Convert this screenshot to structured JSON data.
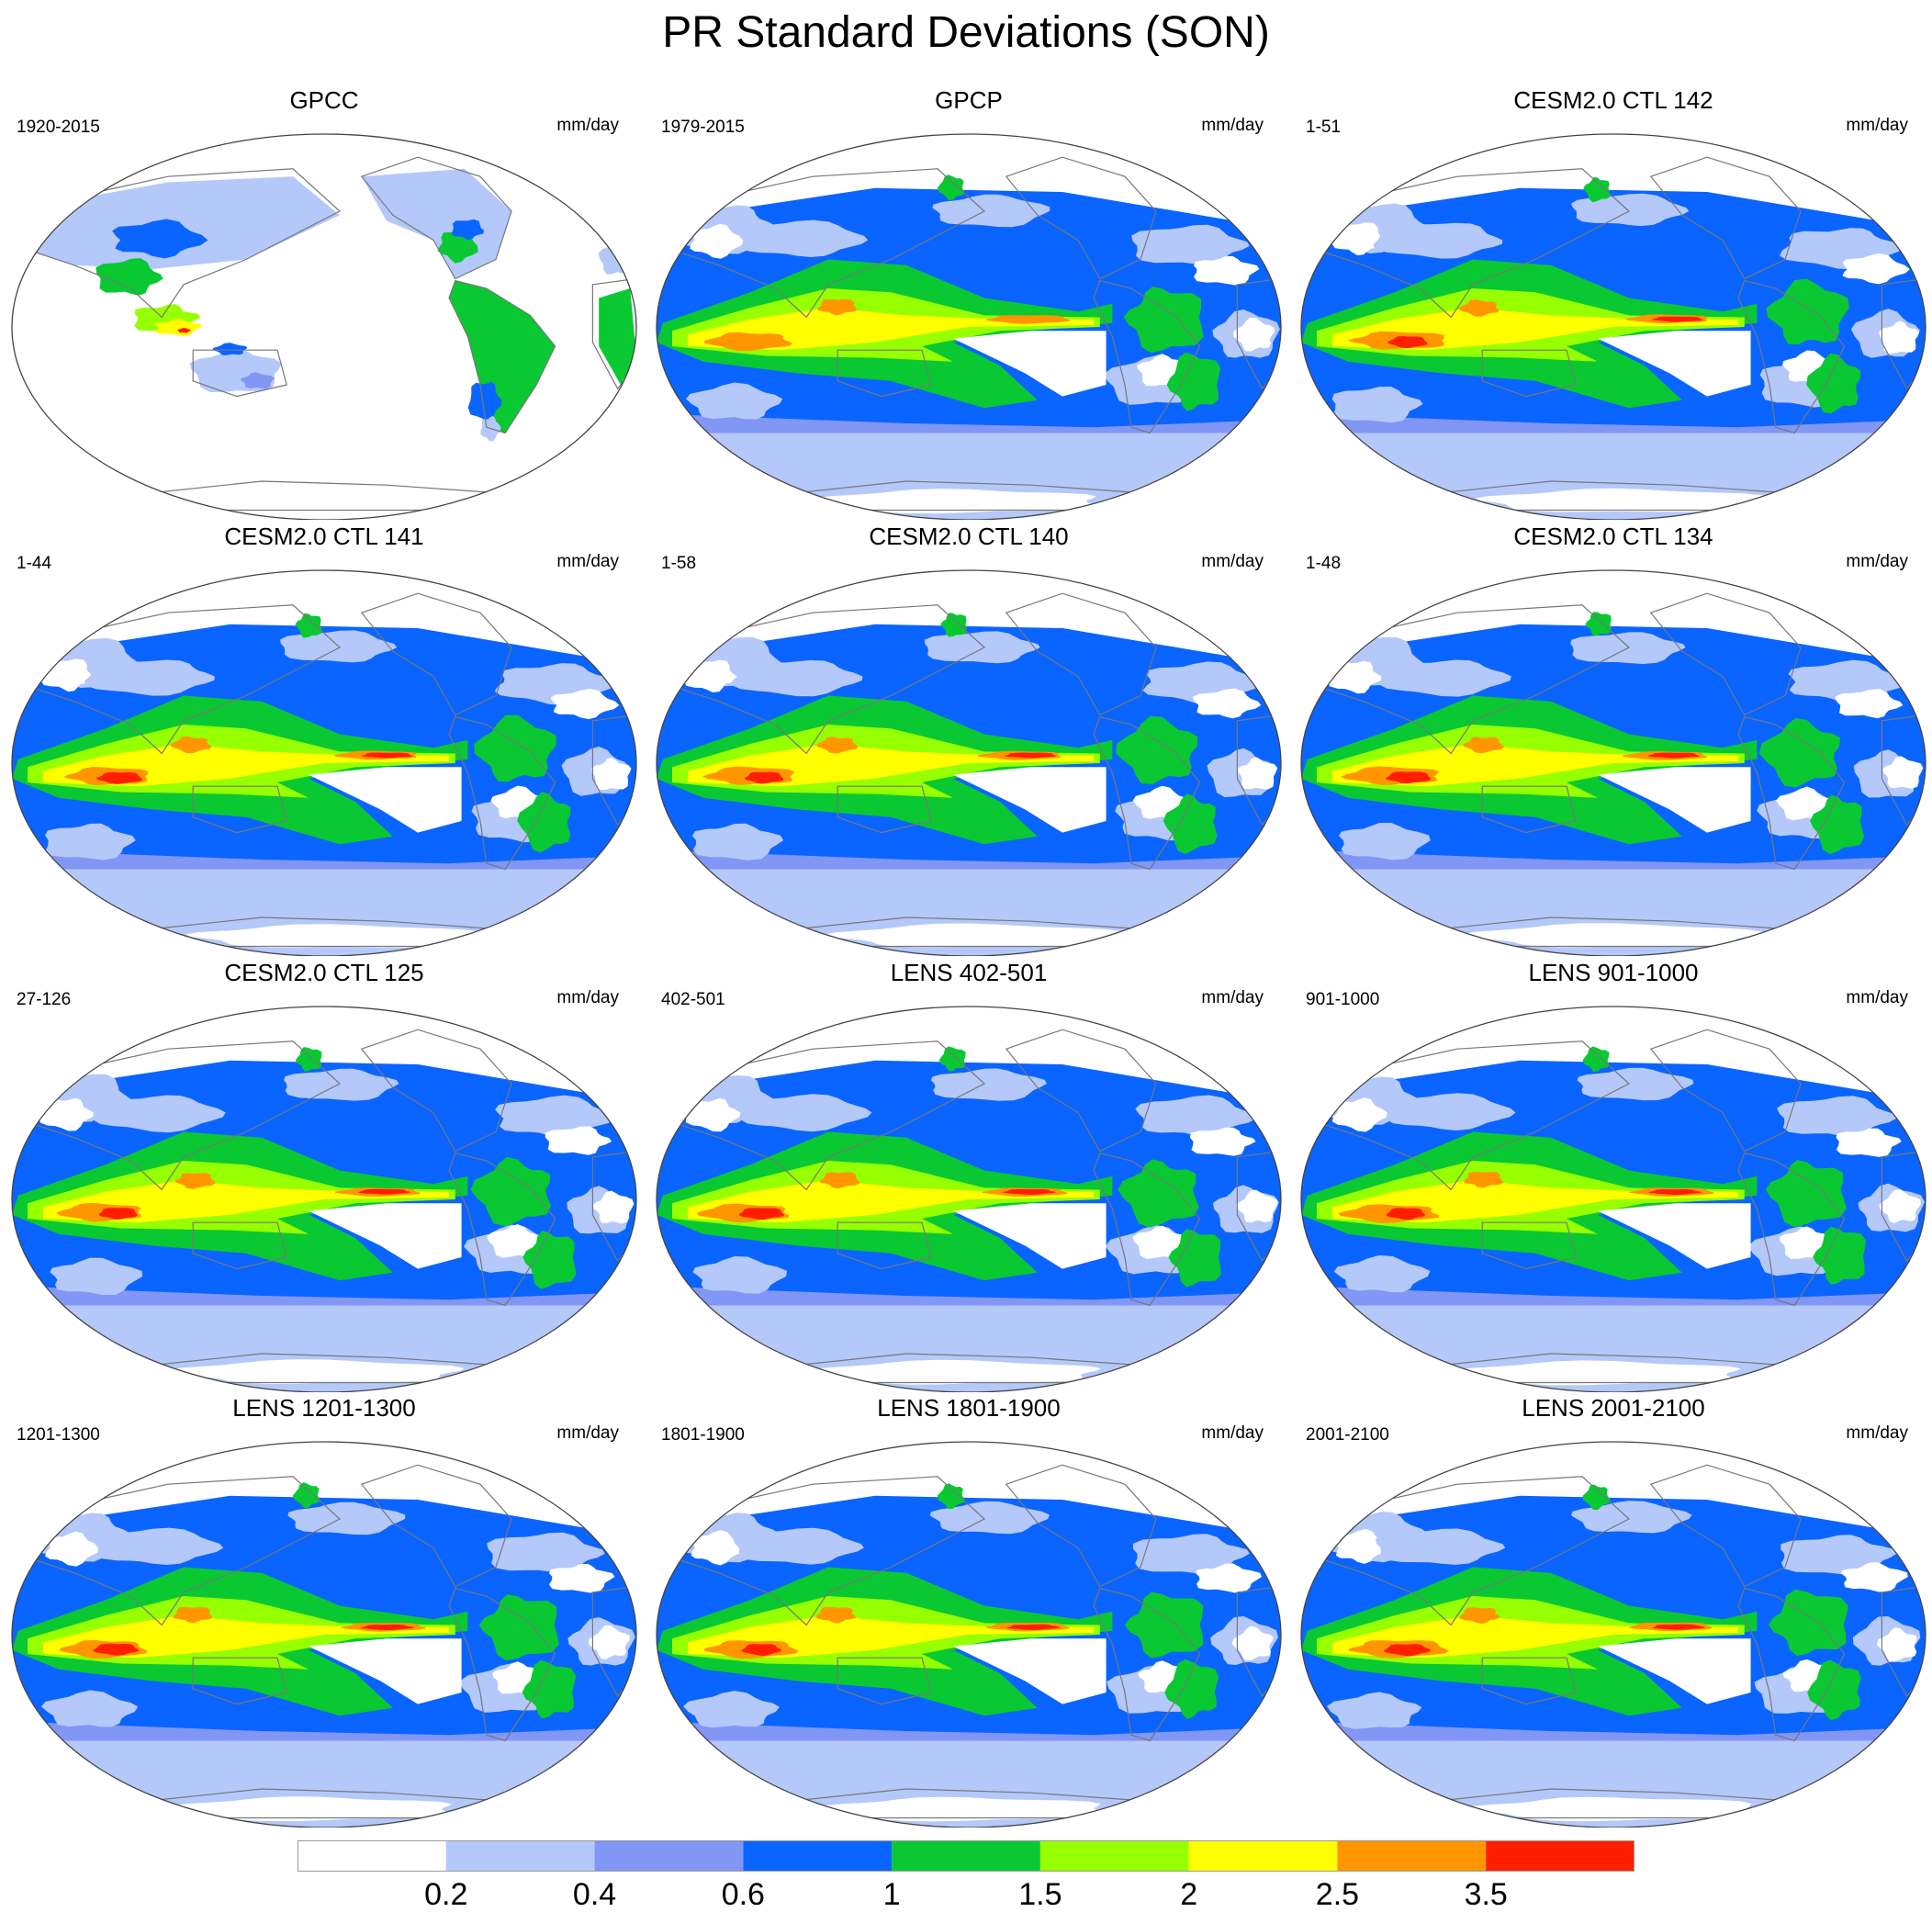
{
  "title": "PR Standard Deviations (SON)",
  "units": "mm/day",
  "panels": [
    {
      "title": "GPCC",
      "period": "1920-2015",
      "units": "mm/day",
      "style": "land-only"
    },
    {
      "title": "GPCP",
      "period": "1979-2015",
      "units": "mm/day",
      "style": "obs"
    },
    {
      "title": "CESM2.0 CTL 142",
      "period": "1-51",
      "units": "mm/day",
      "style": "model"
    },
    {
      "title": "CESM2.0 CTL 141",
      "period": "1-44",
      "units": "mm/day",
      "style": "model"
    },
    {
      "title": "CESM2.0 CTL 140",
      "period": "1-58",
      "units": "mm/day",
      "style": "model"
    },
    {
      "title": "CESM2.0 CTL 134",
      "period": "1-48",
      "units": "mm/day",
      "style": "model"
    },
    {
      "title": "CESM2.0 CTL 125",
      "period": "27-126",
      "units": "mm/day",
      "style": "model"
    },
    {
      "title": "LENS 402-501",
      "period": "402-501",
      "units": "mm/day",
      "style": "model"
    },
    {
      "title": "LENS 901-1000",
      "period": "901-1000",
      "units": "mm/day",
      "style": "model"
    },
    {
      "title": "LENS 1201-1300",
      "period": "1201-1300",
      "units": "mm/day",
      "style": "model"
    },
    {
      "title": "LENS 1801-1900",
      "period": "1801-1900",
      "units": "mm/day",
      "style": "model"
    },
    {
      "title": "LENS 2001-2100",
      "period": "2001-2100",
      "units": "mm/day",
      "style": "model"
    }
  ],
  "colorbar": {
    "colors": [
      "#ffffff",
      "#b4c8fa",
      "#8296f5",
      "#0a64ff",
      "#0ac832",
      "#96ff00",
      "#ffff00",
      "#ff9600",
      "#ff1e00"
    ],
    "labels": [
      "0.2",
      "0.4",
      "0.6",
      "1",
      "1.5",
      "2",
      "2.5",
      "3.5"
    ]
  }
}
